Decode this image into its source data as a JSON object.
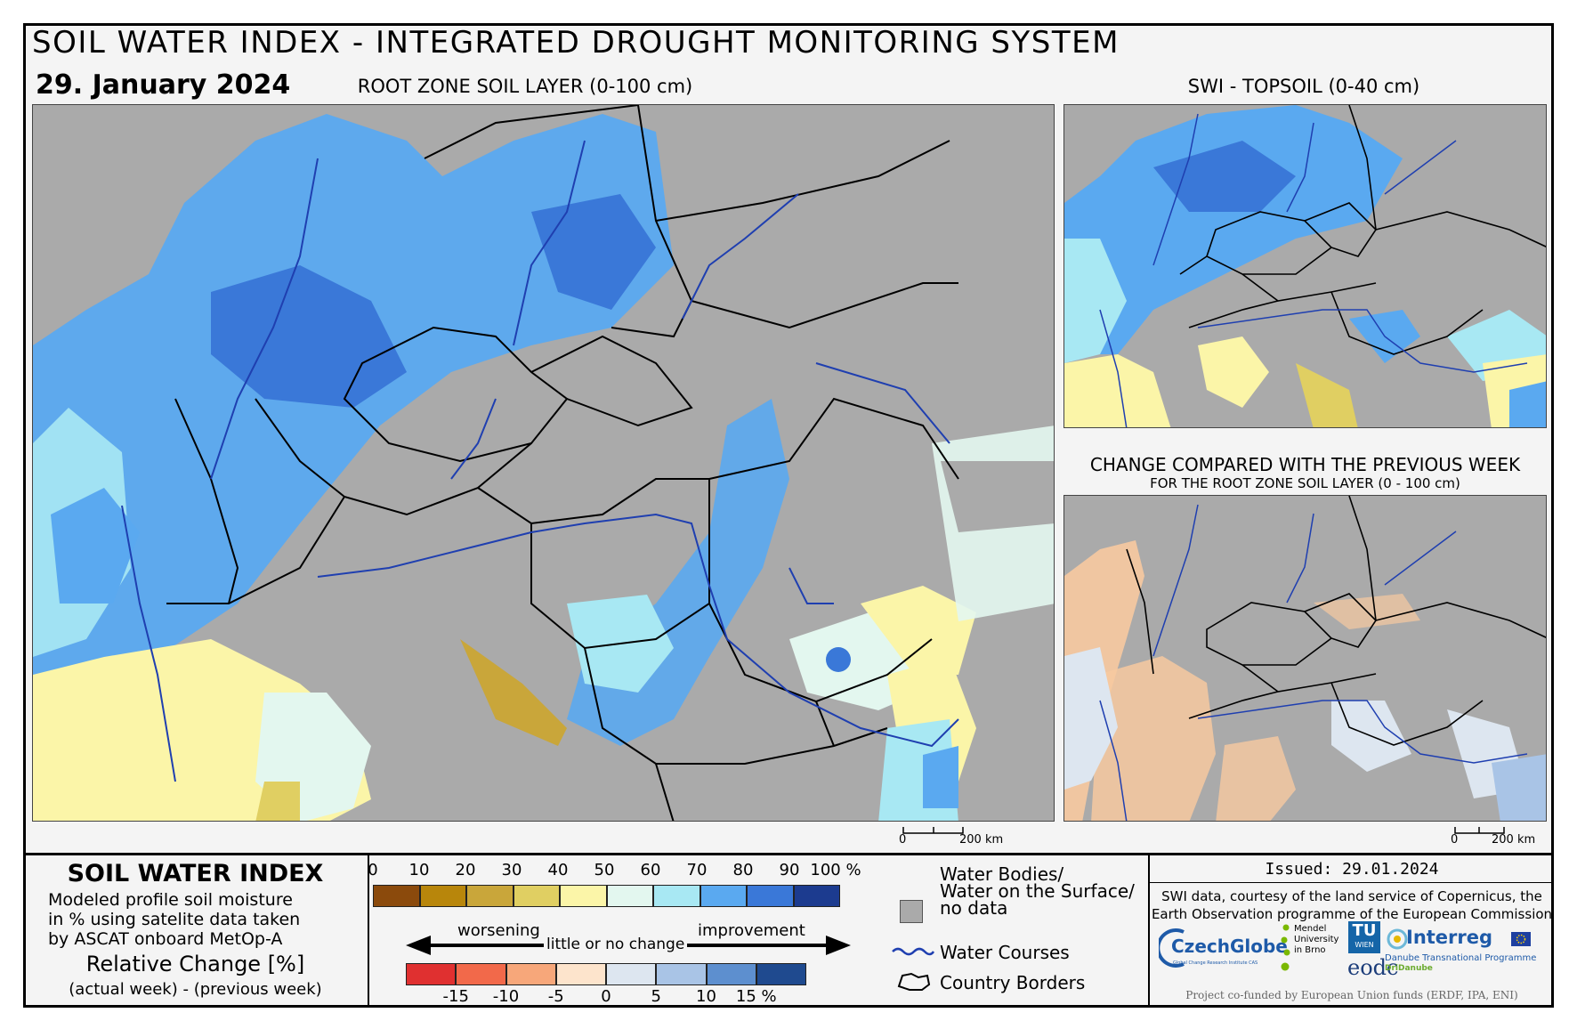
{
  "header": {
    "title": "SOIL WATER INDEX - INTEGRATED DROUGHT MONITORING SYSTEM",
    "date": "29. January 2024"
  },
  "maps": {
    "main_label": "ROOT ZONE SOIL LAYER (0-100 cm)",
    "topsoil_label": "SWI - TOPSOIL (0-40 cm)",
    "change_label": "CHANGE COMPARED WITH THE PREVIOUS WEEK",
    "change_sublabel": "FOR THE ROOT ZONE SOIL LAYER (0 - 100 cm)",
    "scale_main": {
      "zero": "0",
      "end": "200 km"
    },
    "scale_change": {
      "zero": "0",
      "end": "200 km"
    }
  },
  "legend": {
    "swi_title": "SOIL WATER INDEX",
    "swi_desc": [
      "Modeled profile soil moisture",
      "in % using satelite data taken",
      "by ASCAT onboard MetOp-A"
    ],
    "swi_ticks": [
      "0",
      "10",
      "20",
      "30",
      "40",
      "50",
      "60",
      "70",
      "80",
      "90",
      "100 %"
    ],
    "swi_colors": [
      "#8b4a0c",
      "#b8860b",
      "#c9a63a",
      "#e0cf62",
      "#fbf5a8",
      "#e3f7ef",
      "#a8e8f3",
      "#5aa9f0",
      "#3a78d8",
      "#1c3b8f"
    ],
    "change_title": "Relative Change [%]",
    "change_desc": "(actual week) - (previous week)",
    "arrow_left": "worsening",
    "arrow_mid": "little or no change",
    "arrow_right": "improvement",
    "change_ticks": [
      "-15",
      "-10",
      "-5",
      "0",
      "5",
      "10",
      "15 %"
    ],
    "change_colors": [
      "#e03030",
      "#f2694a",
      "#f7a77a",
      "#fde4cc",
      "#dde6f0",
      "#a9c4e6",
      "#5d8fcf",
      "#1f4a8f"
    ],
    "items": [
      {
        "icon": "water-body-icon",
        "label_lines": [
          "Water Bodies/",
          "Water on the Surface/",
          "no data"
        ]
      },
      {
        "icon": "water-course-icon",
        "label_lines": [
          "Water Courses"
        ]
      },
      {
        "icon": "country-border-icon",
        "label_lines": [
          "Country Borders"
        ]
      }
    ]
  },
  "info": {
    "issued": "Issued: 29.01.2024",
    "credit_line1": "SWI data, courtesy of the land service of Copernicus, the",
    "credit_line2": "Earth Observation programme of the European Commission",
    "funded": "Project co-funded by European Union funds (ERDF, IPA, ENI)",
    "logos": {
      "czechglobe": "CzechGlobe",
      "czechglobe_sub": "Global Change Research Institute CAS",
      "mendel": [
        "Mendel",
        "University",
        "in Brno"
      ],
      "tu": "TU",
      "tu_sub": "WIEN",
      "eodc": "eodc",
      "interreg": "Interreg",
      "interreg_sub1": "Danube Transnational Programme",
      "interreg_sub2": "DriDanube"
    }
  },
  "colors": {
    "no_data": "#aaaaaa",
    "water_course": "#1f3fb0",
    "border": "#000000"
  }
}
